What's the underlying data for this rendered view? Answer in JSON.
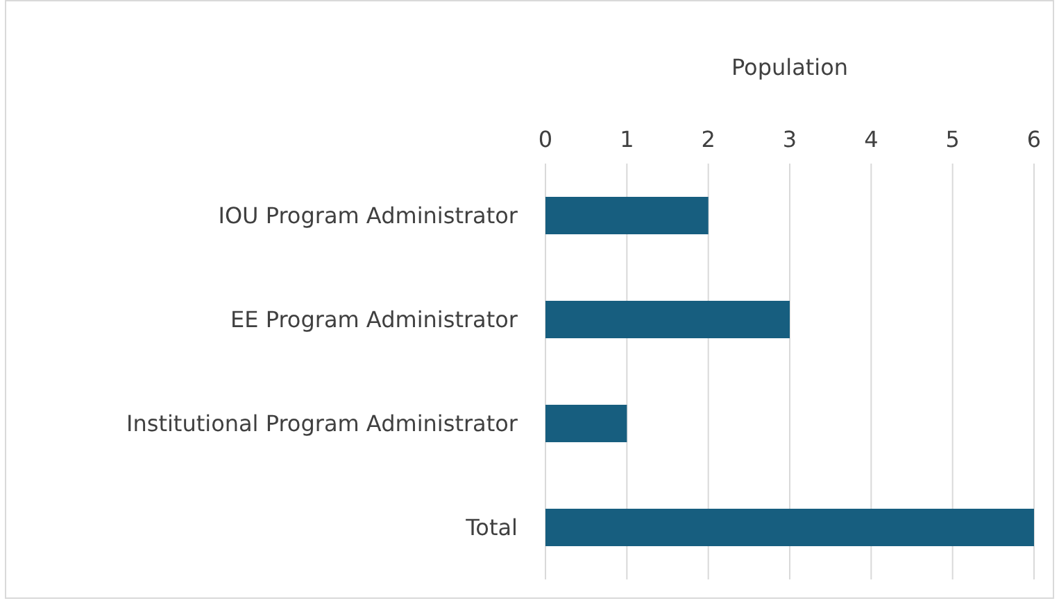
{
  "chart_data": {
    "type": "bar",
    "orientation": "horizontal",
    "xlabel": "Population",
    "categories": [
      "IOU Program Administrator",
      "EE Program Administrator",
      "Institutional Program Administrator",
      "Total"
    ],
    "values": [
      2,
      3,
      1,
      6
    ],
    "color": "#175e7f",
    "xlim": [
      0,
      6
    ],
    "xticks": [
      0,
      1,
      2,
      3,
      4,
      5,
      6
    ],
    "grid": "x"
  }
}
